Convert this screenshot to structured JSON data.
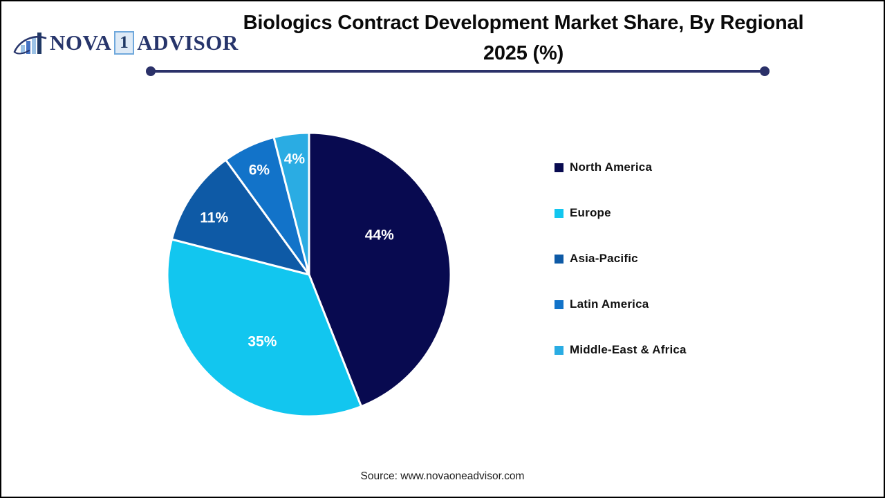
{
  "header": {
    "title_line1": "Biologics Contract Development Market Share, By Regional",
    "title_line2": "2025 (%)"
  },
  "logo": {
    "name_part1": "NOVA",
    "name_part2": "1",
    "name_part3": "ADVISOR"
  },
  "footer": {
    "source": "Source: www.novaoneadvisor.com"
  },
  "colors": {
    "accent_rule": "#2B3169",
    "logo_navy": "#27356B",
    "logo_light_blue": "#6FA8DC"
  },
  "chart_data": {
    "type": "pie",
    "title": "Biologics Contract Development Market Share, By Regional 2025 (%)",
    "unit": "%",
    "direction": "clockwise",
    "start_angle_deg": 0,
    "legend_position": "right",
    "slices": [
      {
        "label": "North America",
        "value": 44,
        "color": "#080A50"
      },
      {
        "label": "Europe",
        "value": 35,
        "color": "#12C6EF"
      },
      {
        "label": "Asia-Pacific",
        "value": 11,
        "color": "#0E5AA6"
      },
      {
        "label": "Latin America",
        "value": 6,
        "color": "#1273C9"
      },
      {
        "label": "Middle-East & Africa",
        "value": 4,
        "color": "#2AACE3"
      }
    ]
  }
}
